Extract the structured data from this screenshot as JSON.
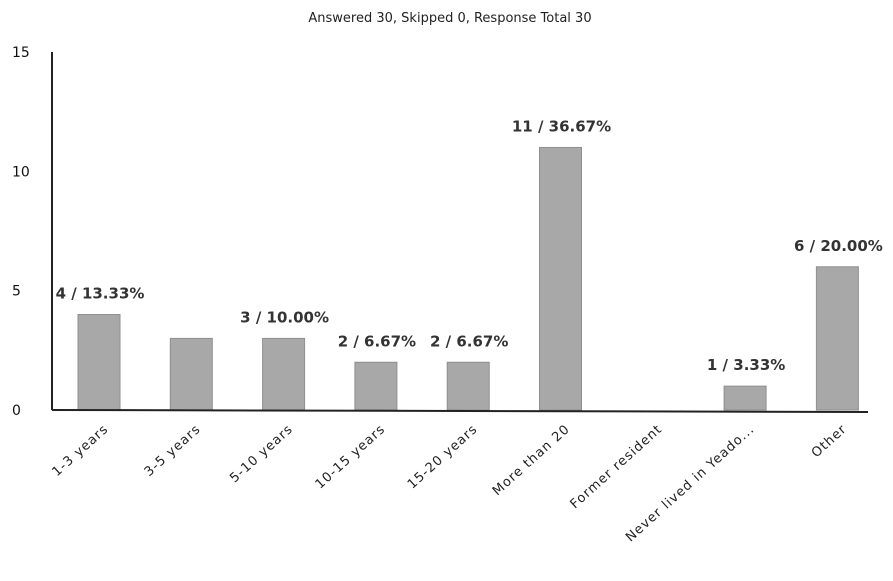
{
  "chart_data": {
    "type": "bar",
    "title": "Answered 30, Skipped 0, Response Total 30",
    "categories": [
      "1-3 years",
      "3-5 years",
      "5-10 years",
      "10-15 years",
      "15-20 years",
      "More than 20",
      "Former resident",
      "Never lived in Yeado...",
      "Other"
    ],
    "values": [
      4,
      3,
      3,
      2,
      2,
      11,
      0,
      1,
      6
    ],
    "data_labels": [
      "4 / 13.33%",
      "",
      "3 / 10.00%",
      "2 / 6.67%",
      "2 / 6.67%",
      "11 / 36.67%",
      "",
      "1 / 3.33%",
      "6 / 20.00%"
    ],
    "ylim": [
      0,
      15
    ],
    "yticks": [
      0,
      5,
      10,
      15
    ],
    "xlabel": "",
    "ylabel": "",
    "grid": false,
    "bar_color": "#a8a8a8"
  }
}
